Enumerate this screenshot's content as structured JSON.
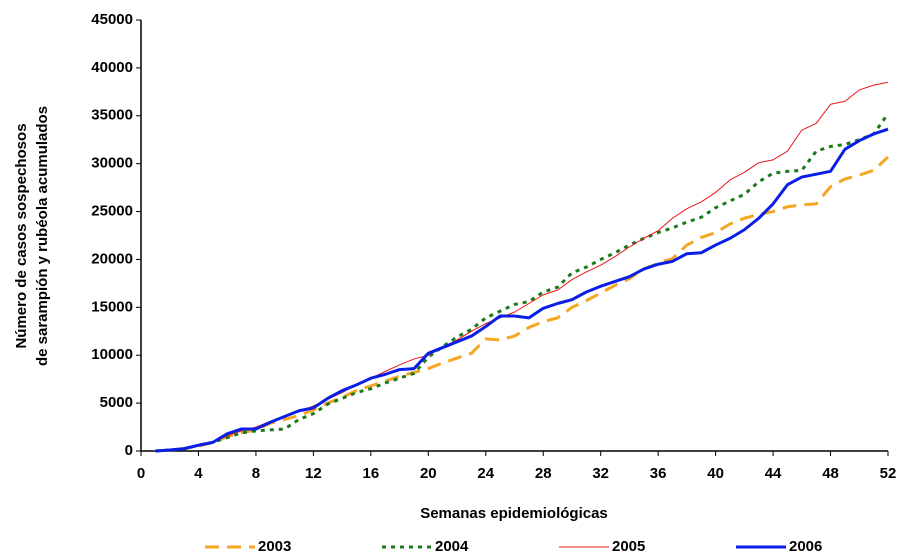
{
  "chart_data": {
    "type": "line",
    "xlabel": "Semanas epidemiológicas",
    "ylabel": [
      "Número de casos sospechosos",
      "de sarampión y rubéola acumulados"
    ],
    "x": [
      1,
      2,
      3,
      4,
      5,
      6,
      7,
      8,
      9,
      10,
      11,
      12,
      13,
      14,
      15,
      16,
      17,
      18,
      19,
      20,
      21,
      22,
      23,
      24,
      25,
      26,
      27,
      28,
      29,
      30,
      31,
      32,
      33,
      34,
      35,
      36,
      37,
      38,
      39,
      40,
      41,
      42,
      43,
      44,
      45,
      46,
      47,
      48,
      49,
      50,
      51,
      52
    ],
    "xlim": [
      0,
      52
    ],
    "xticks": [
      0,
      4,
      8,
      12,
      16,
      20,
      24,
      28,
      32,
      36,
      40,
      44,
      48,
      52
    ],
    "ylim": [
      0,
      45000
    ],
    "yticks": [
      0,
      5000,
      10000,
      15000,
      20000,
      25000,
      30000,
      35000,
      40000,
      45000
    ],
    "grid": false,
    "legend": "bottom",
    "series": [
      {
        "name": "2003",
        "color": "#f5a623",
        "style": "dashed",
        "width": 3,
        "values": [
          0,
          100,
          250,
          500,
          900,
          1500,
          1900,
          2200,
          2900,
          3300,
          3700,
          4300,
          5000,
          5600,
          6300,
          6800,
          7300,
          7800,
          8200,
          8600,
          9200,
          9700,
          10200,
          11700,
          11600,
          12000,
          12900,
          13500,
          13900,
          15000,
          15700,
          16500,
          17300,
          18000,
          19000,
          19600,
          20100,
          21500,
          22300,
          22800,
          23700,
          24300,
          24700,
          25000,
          25500,
          25700,
          25800,
          27600,
          28400,
          28800,
          29300,
          30700
        ]
      },
      {
        "name": "2004",
        "color": "#1a7a1a",
        "style": "dotted",
        "width": 3,
        "values": [
          0,
          100,
          200,
          600,
          900,
          1400,
          1900,
          2100,
          2200,
          2300,
          3300,
          3900,
          4900,
          5500,
          6100,
          6500,
          7100,
          7600,
          8100,
          9800,
          10900,
          11900,
          12700,
          13900,
          14600,
          15300,
          15600,
          16600,
          17100,
          18600,
          19200,
          20000,
          20700,
          21500,
          22200,
          22800,
          23300,
          23900,
          24400,
          25400,
          26100,
          26800,
          28100,
          29000,
          29200,
          29300,
          31300,
          31800,
          32000,
          32500,
          33100,
          35200
        ]
      },
      {
        "name": "2005",
        "color": "#e8161b",
        "style": "solid",
        "width": 1,
        "values": [
          0,
          100,
          300,
          600,
          900,
          1600,
          2100,
          2500,
          3100,
          3700,
          4100,
          4700,
          5400,
          6100,
          6900,
          7600,
          8300,
          9000,
          9600,
          10000,
          10800,
          11600,
          12500,
          13300,
          13900,
          14500,
          15400,
          16300,
          16800,
          17900,
          18700,
          19400,
          20300,
          21300,
          22200,
          23000,
          24300,
          25300,
          26000,
          27000,
          28300,
          29100,
          30100,
          30400,
          31300,
          33500,
          34200,
          36200,
          36500,
          37700,
          38200,
          38500
        ]
      },
      {
        "name": "2006",
        "color": "#0a1ee6",
        "style": "solid",
        "width": 3,
        "values": [
          0,
          100,
          250,
          600,
          900,
          1800,
          2300,
          2300,
          3000,
          3600,
          4200,
          4500,
          5500,
          6300,
          6900,
          7600,
          8000,
          8500,
          8600,
          10200,
          10800,
          11400,
          12000,
          13000,
          14100,
          14100,
          13900,
          14900,
          15400,
          15800,
          16600,
          17200,
          17700,
          18200,
          19000,
          19500,
          19800,
          20600,
          20700,
          21500,
          22200,
          23100,
          24300,
          25800,
          27800,
          28600,
          28900,
          29200,
          31500,
          32400,
          33100,
          33600
        ]
      }
    ]
  }
}
